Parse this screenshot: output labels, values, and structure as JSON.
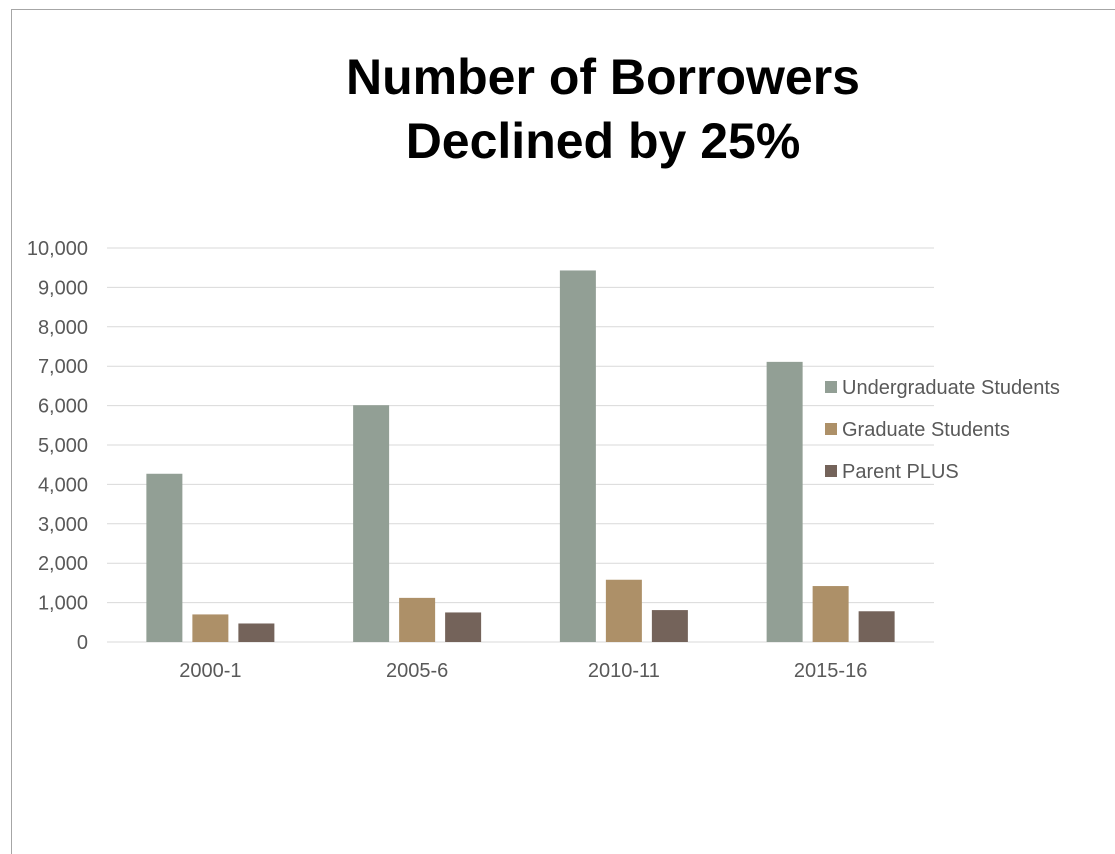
{
  "chart_data": {
    "type": "bar",
    "title_lines": [
      "Number of Borrowers",
      "Declined by 25%"
    ],
    "xlabel": "",
    "ylabel": "",
    "categories": [
      "2000-1",
      "2005-6",
      "2010-11",
      "2015-16"
    ],
    "series": [
      {
        "name": "Undergraduate Students",
        "color": "#929f95",
        "values": [
          4270,
          6010,
          9430,
          7110
        ]
      },
      {
        "name": "Graduate Students",
        "color": "#ad9068",
        "values": [
          700,
          1120,
          1580,
          1420
        ]
      },
      {
        "name": "Parent PLUS",
        "color": "#74635a",
        "values": [
          470,
          750,
          810,
          780
        ]
      }
    ],
    "ylim": [
      0,
      10000
    ],
    "yticks": [
      "0",
      "1,000",
      "2,000",
      "3,000",
      "4,000",
      "5,000",
      "6,000",
      "7,000",
      "8,000",
      "9,000",
      "10,000"
    ],
    "grid": true,
    "legend_position": "right"
  }
}
